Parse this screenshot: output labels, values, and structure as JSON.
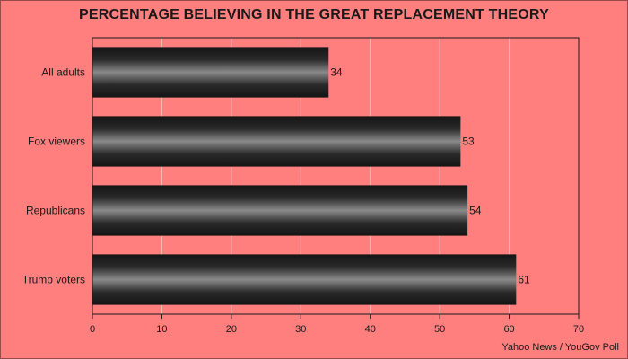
{
  "chart_data": {
    "type": "bar",
    "orientation": "horizontal",
    "title": "PERCENTAGE BELIEVING IN THE GREAT REPLACEMENT THEORY",
    "categories": [
      "All adults",
      "Fox viewers",
      "Republicans",
      "Trump voters"
    ],
    "values": [
      34,
      53,
      54,
      61
    ],
    "xlim": [
      0,
      70
    ],
    "xticks": [
      0,
      10,
      20,
      30,
      40,
      50,
      60,
      70
    ],
    "grid": "vertical",
    "legend": "none",
    "source": "Yahoo News / YouGov Poll"
  },
  "colors": {
    "background": "#ff7f7f",
    "bar_dark": "#1c1c1c",
    "bar_highlight": "#8a8a8a",
    "gridline": "#f2b8b8"
  }
}
